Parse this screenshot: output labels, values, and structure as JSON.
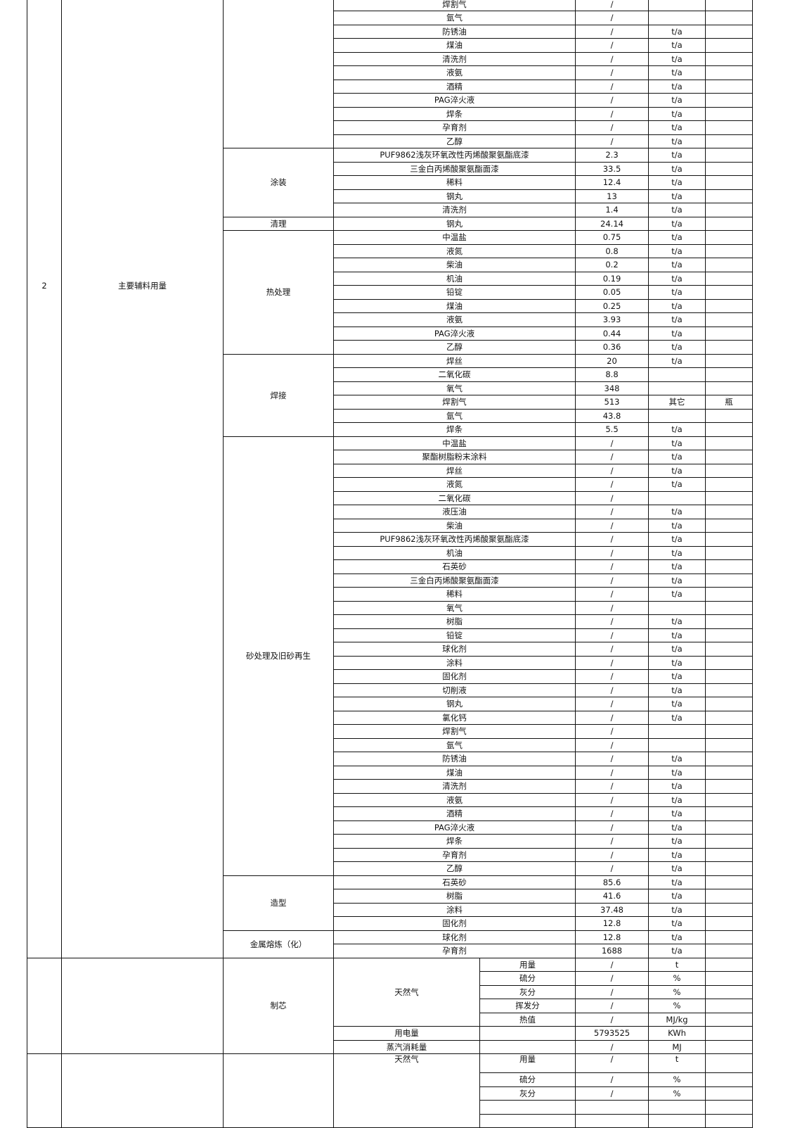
{
  "section2": {
    "number": "2",
    "category": "主要辅料用量",
    "groups": [
      {
        "process": "",
        "rows": [
          [
            "焊割气",
            "/",
            "",
            ""
          ],
          [
            "氩气",
            "/",
            "",
            ""
          ],
          [
            "防锈油",
            "/",
            "t/a",
            ""
          ],
          [
            "煤油",
            "/",
            "t/a",
            ""
          ],
          [
            "清洗剂",
            "/",
            "t/a",
            ""
          ],
          [
            "液氨",
            "/",
            "t/a",
            ""
          ],
          [
            "酒精",
            "/",
            "t/a",
            ""
          ],
          [
            "PAG淬火液",
            "/",
            "t/a",
            ""
          ],
          [
            "焊条",
            "/",
            "t/a",
            ""
          ],
          [
            "孕育剂",
            "/",
            "t/a",
            ""
          ],
          [
            "乙醇",
            "/",
            "t/a",
            ""
          ]
        ]
      },
      {
        "process": "涂装",
        "rows": [
          [
            "PUF9862浅灰环氧改性丙烯酸聚氨酯底漆",
            "2.3",
            "t/a",
            ""
          ],
          [
            "三金白丙烯酸聚氨酯面漆",
            "33.5",
            "t/a",
            ""
          ],
          [
            "稀料",
            "12.4",
            "t/a",
            ""
          ],
          [
            "钢丸",
            "13",
            "t/a",
            ""
          ],
          [
            "清洗剂",
            "1.4",
            "t/a",
            ""
          ]
        ]
      },
      {
        "process": "清理",
        "rows": [
          [
            "钢丸",
            "24.14",
            "t/a",
            ""
          ]
        ]
      },
      {
        "process": "热处理",
        "rows": [
          [
            "中温盐",
            "0.75",
            "t/a",
            ""
          ],
          [
            "液氮",
            "0.8",
            "t/a",
            ""
          ],
          [
            "柴油",
            "0.2",
            "t/a",
            ""
          ],
          [
            "机油",
            "0.19",
            "t/a",
            ""
          ],
          [
            "铅锭",
            "0.05",
            "t/a",
            ""
          ],
          [
            "煤油",
            "0.25",
            "t/a",
            ""
          ],
          [
            "液氨",
            "3.93",
            "t/a",
            ""
          ],
          [
            "PAG淬火液",
            "0.44",
            "t/a",
            ""
          ],
          [
            "乙醇",
            "0.36",
            "t/a",
            ""
          ]
        ]
      },
      {
        "process": "焊接",
        "rows": [
          [
            "焊丝",
            "20",
            "t/a",
            ""
          ],
          [
            "二氧化碳",
            "8.8",
            "",
            ""
          ],
          [
            "氧气",
            "348",
            "",
            ""
          ],
          [
            "焊割气",
            "513",
            "其它",
            "瓶"
          ],
          [
            "氩气",
            "43.8",
            "",
            ""
          ],
          [
            "焊条",
            "5.5",
            "t/a",
            ""
          ]
        ]
      },
      {
        "process": "砂处理及旧砂再生",
        "rows": [
          [
            "中温盐",
            "/",
            "t/a",
            ""
          ],
          [
            "聚酯树脂粉末涂料",
            "/",
            "t/a",
            ""
          ],
          [
            "焊丝",
            "/",
            "t/a",
            ""
          ],
          [
            "液氮",
            "/",
            "t/a",
            ""
          ],
          [
            "二氧化碳",
            "/",
            "",
            ""
          ],
          [
            "液压油",
            "/",
            "t/a",
            ""
          ],
          [
            "柴油",
            "/",
            "t/a",
            ""
          ],
          [
            "PUF9862浅灰环氧改性丙烯酸聚氨酯底漆",
            "/",
            "t/a",
            ""
          ],
          [
            "机油",
            "/",
            "t/a",
            ""
          ],
          [
            "石英砂",
            "/",
            "t/a",
            ""
          ],
          [
            "三金白丙烯酸聚氨酯面漆",
            "/",
            "t/a",
            ""
          ],
          [
            "稀料",
            "/",
            "t/a",
            ""
          ],
          [
            "氧气",
            "/",
            "",
            ""
          ],
          [
            "树脂",
            "/",
            "t/a",
            ""
          ],
          [
            "铅锭",
            "/",
            "t/a",
            ""
          ],
          [
            "球化剂",
            "/",
            "t/a",
            ""
          ],
          [
            "涂料",
            "/",
            "t/a",
            ""
          ],
          [
            "固化剂",
            "/",
            "t/a",
            ""
          ],
          [
            "切削液",
            "/",
            "t/a",
            ""
          ],
          [
            "钢丸",
            "/",
            "t/a",
            ""
          ],
          [
            "氯化钙",
            "/",
            "t/a",
            ""
          ],
          [
            "焊割气",
            "/",
            "",
            ""
          ],
          [
            "氩气",
            "/",
            "",
            ""
          ],
          [
            "防锈油",
            "/",
            "t/a",
            ""
          ],
          [
            "煤油",
            "/",
            "t/a",
            ""
          ],
          [
            "清洗剂",
            "/",
            "t/a",
            ""
          ],
          [
            "液氨",
            "/",
            "t/a",
            ""
          ],
          [
            "酒精",
            "/",
            "t/a",
            ""
          ],
          [
            "PAG淬火液",
            "/",
            "t/a",
            ""
          ],
          [
            "焊条",
            "/",
            "t/a",
            ""
          ],
          [
            "孕育剂",
            "/",
            "t/a",
            ""
          ],
          [
            "乙醇",
            "/",
            "t/a",
            ""
          ]
        ]
      },
      {
        "process": "造型",
        "rows": [
          [
            "石英砂",
            "85.6",
            "t/a",
            ""
          ],
          [
            "树脂",
            "41.6",
            "t/a",
            ""
          ],
          [
            "涂料",
            "37.48",
            "t/a",
            ""
          ],
          [
            "固化剂",
            "12.8",
            "t/a",
            ""
          ]
        ]
      },
      {
        "process": "金属熔炼（化）",
        "rows": [
          [
            "球化剂",
            "12.8",
            "t/a",
            ""
          ],
          [
            "孕育剂",
            "1688",
            "t/a",
            ""
          ]
        ]
      }
    ]
  },
  "section3": {
    "groups": [
      {
        "process": "制芯",
        "fuel": "天然气",
        "fuel_rows": [
          [
            "用量",
            "/",
            "t"
          ],
          [
            "硫分",
            "/",
            "%"
          ],
          [
            "灰分",
            "/",
            "%"
          ],
          [
            "挥发分",
            "/",
            "%"
          ],
          [
            "热值",
            "/",
            "MJ/kg"
          ]
        ],
        "other_rows": [
          [
            "用电量",
            "5793525",
            "KWh"
          ],
          [
            "蒸汽消耗量",
            "/",
            "MJ"
          ]
        ]
      },
      {
        "process": "",
        "fuel": "天然气",
        "fuel_rows": [
          [
            "用量",
            "/",
            "t"
          ],
          [
            "硫分",
            "/",
            "%"
          ],
          [
            "灰分",
            "/",
            "%"
          ]
        ],
        "other_rows": []
      }
    ]
  }
}
